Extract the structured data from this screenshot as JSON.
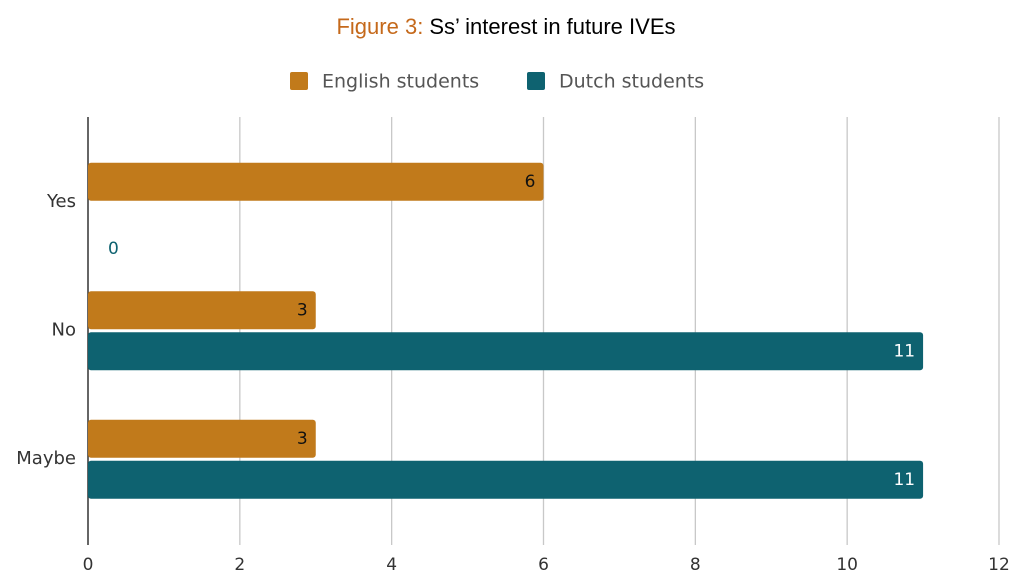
{
  "chart_data": {
    "type": "hbar",
    "title_label": "Figure 3:",
    "title": "Ss’ interest in future IVEs",
    "categories": [
      "Yes",
      "No",
      "Maybe"
    ],
    "series": [
      {
        "name": "English students",
        "color": "#c17a1b",
        "values": [
          6,
          3,
          3
        ]
      },
      {
        "name": "Dutch students",
        "color": "#0e6270",
        "values": [
          0,
          11,
          11
        ]
      }
    ],
    "xlim": [
      0,
      12
    ],
    "xticks": [
      0,
      2,
      4,
      6,
      8,
      10,
      12
    ],
    "grid": true,
    "legend": "top"
  }
}
